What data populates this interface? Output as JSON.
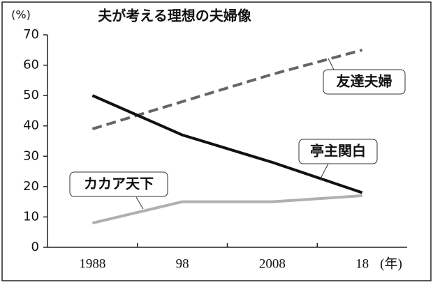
{
  "chart_data": {
    "type": "line",
    "title": "夫が考える理想の夫婦像",
    "y_label": "(%)",
    "x_label": "(年)",
    "categories": [
      "1988",
      "98",
      "2008",
      "18"
    ],
    "series": [
      {
        "name": "友達夫婦",
        "color": "#666666",
        "dash": true,
        "values": [
          39,
          48,
          57,
          65
        ]
      },
      {
        "name": "亭主関白",
        "color": "#111111",
        "dash": false,
        "values": [
          50,
          37,
          28,
          18
        ]
      },
      {
        "name": "カカア天下",
        "color": "#b0b0b0",
        "dash": false,
        "values": [
          8,
          15,
          15,
          17
        ]
      }
    ],
    "ylim": [
      0,
      70
    ],
    "yticks": [
      0,
      10,
      20,
      30,
      40,
      50,
      60,
      70
    ],
    "grid": false
  }
}
